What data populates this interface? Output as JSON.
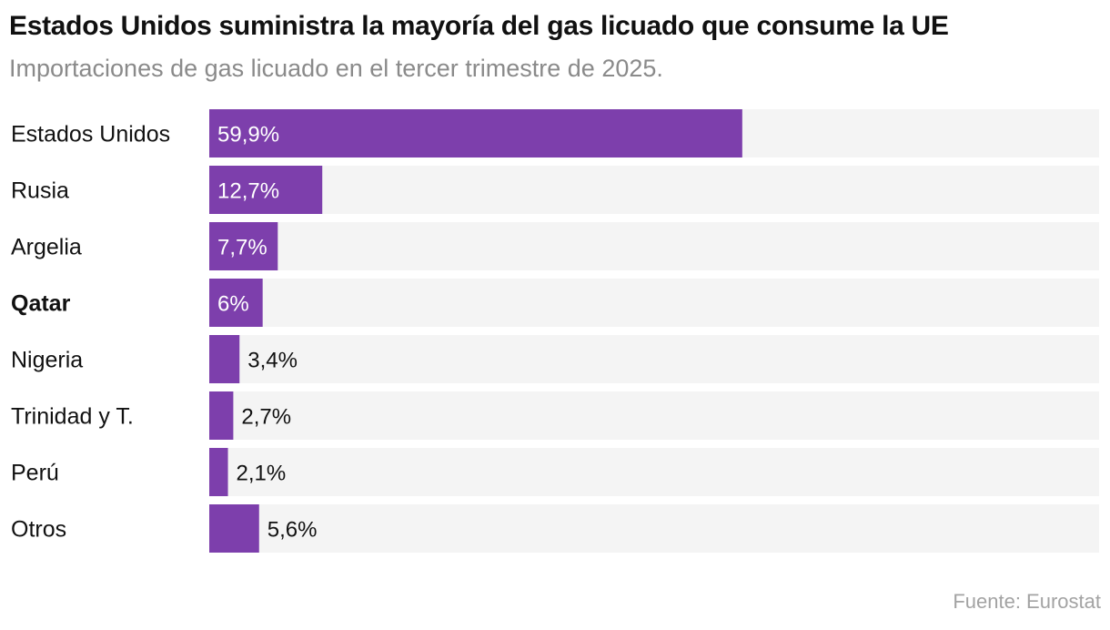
{
  "header": {
    "title": "Estados Unidos suministra la mayoría del gas licuado que consume la UE",
    "subtitle": "Importaciones de gas licuado en el tercer trimestre de 2025."
  },
  "footer": {
    "source": "Fuente: Eurostat"
  },
  "colors": {
    "bar": "#7d3fac",
    "track": "#f4f4f4",
    "label_inside": "#ffffff",
    "label_outside": "#111111"
  },
  "chart_data": {
    "type": "bar",
    "orientation": "horizontal",
    "categories": [
      "Estados Unidos",
      "Rusia",
      "Argelia",
      "Qatar",
      "Nigeria",
      "Trinidad y T.",
      "Perú",
      "Otros"
    ],
    "values": [
      59.9,
      12.7,
      7.7,
      6,
      3.4,
      2.7,
      2.1,
      5.6
    ],
    "value_labels": [
      "59,9%",
      "12,7%",
      "7,7%",
      "6%",
      "3,4%",
      "2,7%",
      "2,1%",
      "5,6%"
    ],
    "highlighted": [
      "Qatar"
    ],
    "xlim": [
      0,
      100
    ],
    "unit": "%",
    "grid": false,
    "legend": "none"
  }
}
